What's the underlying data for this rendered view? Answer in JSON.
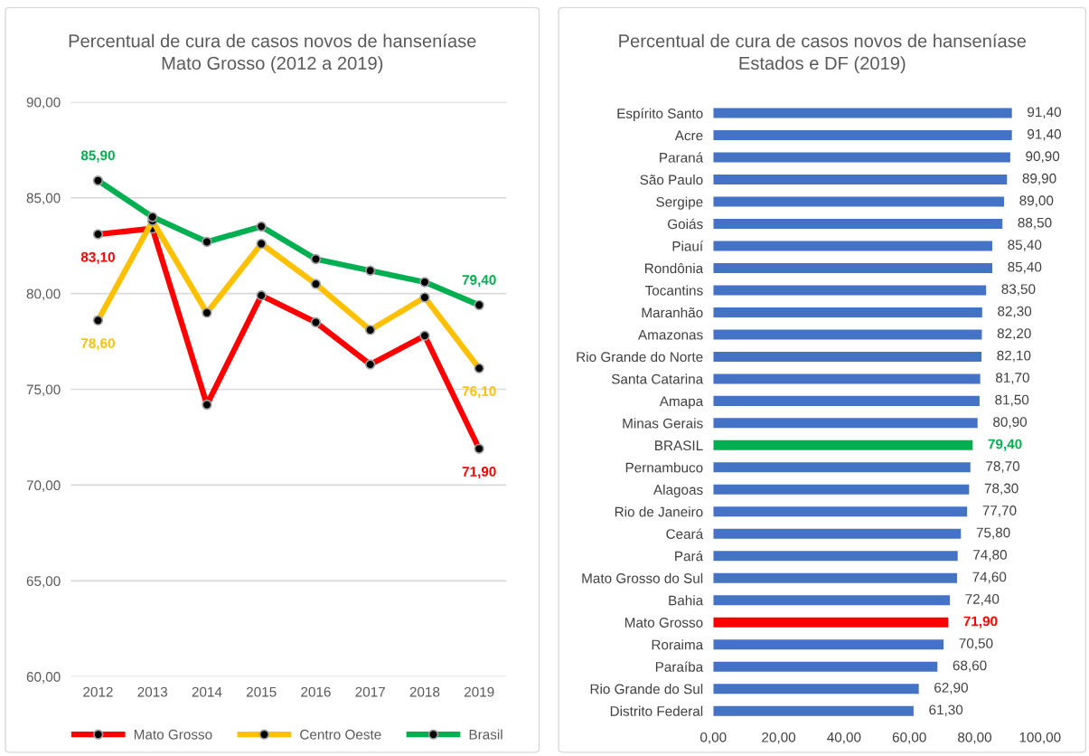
{
  "chart_data": [
    {
      "type": "line",
      "title": "Percentual de cura de casos novos de hanseníase\nMato Grosso (2012 a 2019)",
      "categories": [
        "2012",
        "2013",
        "2014",
        "2015",
        "2016",
        "2017",
        "2018",
        "2019"
      ],
      "series": [
        {
          "name": "Mato Grosso",
          "color": "#ff0000",
          "values": [
            83.1,
            83.4,
            74.2,
            79.9,
            78.5,
            76.3,
            77.8,
            71.9
          ],
          "value_labels": [
            "83,10",
            null,
            null,
            null,
            null,
            null,
            null,
            "71,90"
          ]
        },
        {
          "name": "Centro Oeste",
          "color": "#ffc000",
          "values": [
            78.6,
            83.8,
            79.0,
            82.6,
            80.5,
            78.1,
            79.8,
            76.1
          ],
          "value_labels": [
            "78,60",
            null,
            null,
            null,
            null,
            null,
            null,
            "76,10"
          ]
        },
        {
          "name": "Brasil",
          "color": "#00b050",
          "values": [
            85.9,
            84.0,
            82.7,
            83.5,
            81.8,
            81.2,
            80.6,
            79.4
          ],
          "value_labels": [
            "85,90",
            null,
            null,
            null,
            null,
            null,
            null,
            "79,40"
          ]
        }
      ],
      "ylim": [
        60,
        90
      ],
      "yticks": [
        {
          "value": 60,
          "label": "60,00"
        },
        {
          "value": 65,
          "label": "65,00"
        },
        {
          "value": 70,
          "label": "70,00"
        },
        {
          "value": 75,
          "label": "75,00"
        },
        {
          "value": 80,
          "label": "80,00"
        },
        {
          "value": 85,
          "label": "85,00"
        },
        {
          "value": 90,
          "label": "90,00"
        }
      ],
      "grid": "y",
      "legend": "bottom",
      "marker": "circle",
      "line_style": "solid"
    },
    {
      "type": "bar",
      "orientation": "horizontal",
      "title": "Percentual de cura de casos novos de hanseníase\nEstados e DF (2019)",
      "categories": [
        "Espírito Santo",
        "Acre",
        "Paraná",
        "São Paulo",
        "Sergipe",
        "Goiás",
        "Piauí",
        "Rondônia",
        "Tocantins",
        "Maranhão",
        "Amazonas",
        "Rio Grande do Norte",
        "Santa Catarina",
        "Amapa",
        "Minas Gerais",
        "BRASIL",
        "Pernambuco",
        "Alagoas",
        "Rio de Janeiro",
        "Ceará",
        "Pará",
        "Mato Grosso do Sul",
        "Bahia",
        "Mato Grosso",
        "Roraima",
        "Paraíba",
        "Rio Grande do Sul",
        "Distrito Federal"
      ],
      "values": [
        91.4,
        91.4,
        90.9,
        89.9,
        89.0,
        88.5,
        85.4,
        85.4,
        83.5,
        82.3,
        82.2,
        82.1,
        81.7,
        81.5,
        80.9,
        79.4,
        78.7,
        78.3,
        77.7,
        75.8,
        74.8,
        74.6,
        72.4,
        71.9,
        70.5,
        68.6,
        62.9,
        61.3
      ],
      "value_labels": [
        "91,40",
        "91,40",
        "90,90",
        "89,90",
        "89,00",
        "88,50",
        "85,40",
        "85,40",
        "83,50",
        "82,30",
        "82,20",
        "82,10",
        "81,70",
        "81,50",
        "80,90",
        "79,40",
        "78,70",
        "78,30",
        "77,70",
        "75,80",
        "74,80",
        "74,60",
        "72,40",
        "71,90",
        "70,50",
        "68,60",
        "62,90",
        "61,30"
      ],
      "colors": [
        "#4472c4",
        "#4472c4",
        "#4472c4",
        "#4472c4",
        "#4472c4",
        "#4472c4",
        "#4472c4",
        "#4472c4",
        "#4472c4",
        "#4472c4",
        "#4472c4",
        "#4472c4",
        "#4472c4",
        "#4472c4",
        "#4472c4",
        "#00b050",
        "#4472c4",
        "#4472c4",
        "#4472c4",
        "#4472c4",
        "#4472c4",
        "#4472c4",
        "#4472c4",
        "#ff0000",
        "#4472c4",
        "#4472c4",
        "#4472c4",
        "#4472c4"
      ],
      "xlim": [
        0,
        100
      ],
      "xticks": [
        {
          "value": 0,
          "label": "0,00"
        },
        {
          "value": 20,
          "label": "20,00"
        },
        {
          "value": 40,
          "label": "40,00"
        },
        {
          "value": 60,
          "label": "60,00"
        },
        {
          "value": 80,
          "label": "80,00"
        },
        {
          "value": 100,
          "label": "100,00"
        }
      ],
      "grid": false
    }
  ]
}
